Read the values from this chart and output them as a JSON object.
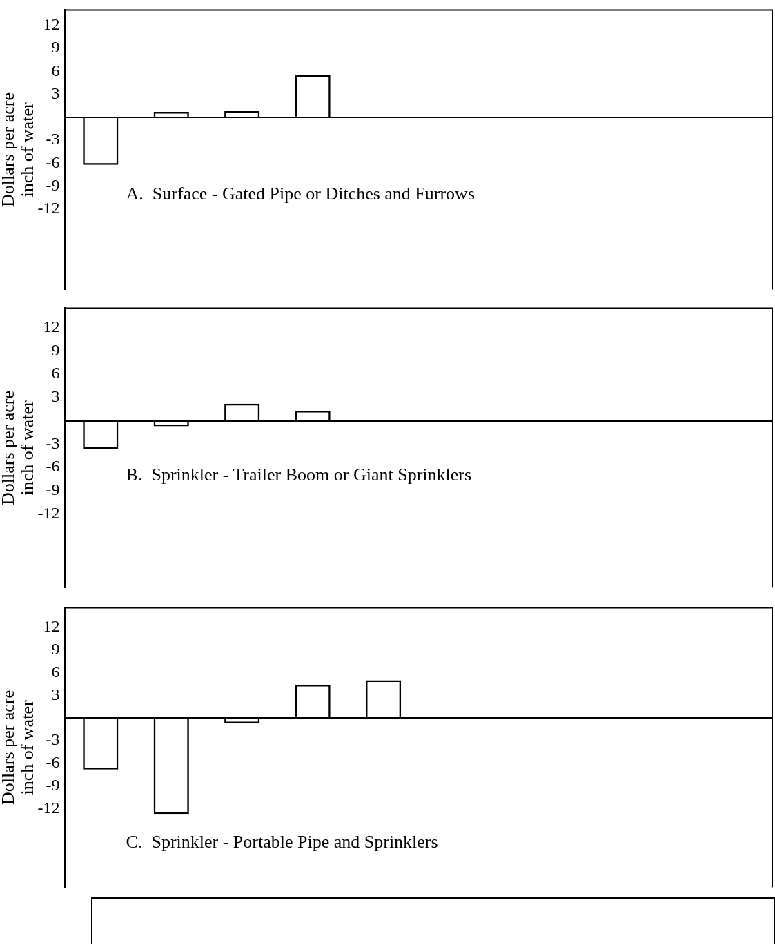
{
  "chart_data": [
    {
      "type": "bar",
      "title": "A.  Surface - Gated Pipe or Ditches and Furrows",
      "ylabel": "Dollars per acre\ninch of water",
      "categories": [
        null,
        null,
        null,
        null,
        null,
        null,
        null,
        null,
        null,
        null
      ],
      "color": "#000000",
      "values": [
        -6.2,
        0.7,
        0.8,
        5.5,
        null,
        null,
        null,
        null,
        null,
        null
      ],
      "ylim": [
        -22.5,
        14
      ],
      "yticks": [
        12,
        9,
        6,
        3,
        -3,
        -6,
        -9,
        -12
      ],
      "grid": false
    },
    {
      "type": "bar",
      "title": "B.  Sprinkler - Trailer Boom or Giant Sprinklers",
      "ylabel": "Dollars per acre\ninch of water",
      "categories": [
        null,
        null,
        null,
        null,
        null,
        null,
        null,
        null,
        null,
        null
      ],
      "color": "#000000",
      "values": [
        -3.6,
        -0.7,
        2.2,
        1.3,
        null,
        null,
        null,
        null,
        null,
        null
      ],
      "ylim": [
        -21.5,
        14.5
      ],
      "yticks": [
        12,
        9,
        6,
        3,
        -3,
        -6,
        -9,
        -12
      ],
      "grid": false
    },
    {
      "type": "bar",
      "title": "C.  Sprinkler - Portable Pipe and Sprinklers",
      "ylabel": "Dollars per acre\ninch of water",
      "categories": [
        null,
        null,
        null,
        null,
        null,
        null,
        null,
        null,
        null,
        null
      ],
      "color": "#000000",
      "values": [
        -6.8,
        -12.7,
        -0.7,
        4.4,
        5.0,
        null,
        null,
        null,
        null,
        null
      ],
      "ylim": [
        -22.4,
        14.6
      ],
      "yticks": [
        12,
        9,
        6,
        3,
        -3,
        -6,
        -9,
        -12
      ],
      "grid": false
    }
  ]
}
